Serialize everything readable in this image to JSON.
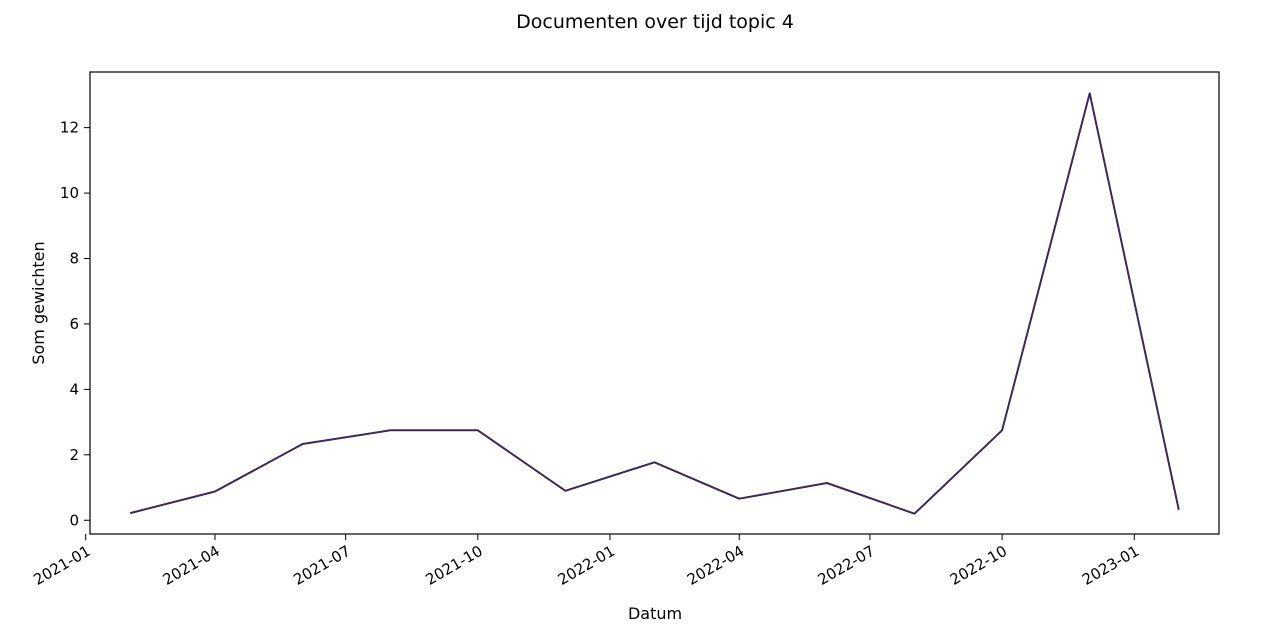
{
  "chart_data": {
    "type": "line",
    "title": "Documenten over tijd topic 4",
    "xlabel": "Datum",
    "ylabel": "Som gewichten",
    "x": [
      "2021-02-01",
      "2021-04-01",
      "2021-06-01",
      "2021-08-01",
      "2021-10-01",
      "2021-12-01",
      "2022-02-01",
      "2022-04-01",
      "2022-06-01",
      "2022-08-01",
      "2022-10-01",
      "2022-12-01",
      "2023-02-01"
    ],
    "series": [
      {
        "values": [
          0.22,
          0.88,
          2.33,
          2.75,
          2.75,
          0.9,
          1.77,
          0.66,
          1.14,
          0.2,
          2.75,
          13.05,
          0.32
        ]
      }
    ],
    "xticks": [
      "2021-01",
      "2021-04",
      "2021-07",
      "2021-10",
      "2022-01",
      "2022-04",
      "2022-07",
      "2022-10",
      "2023-01"
    ],
    "yticks": [
      0,
      2,
      4,
      6,
      8,
      10,
      12
    ],
    "xlim": [
      "2021-01-04",
      "2023-03-01"
    ],
    "ylim": [
      -0.42,
      13.7
    ],
    "grid": false,
    "line_color": "#3b2a57"
  }
}
